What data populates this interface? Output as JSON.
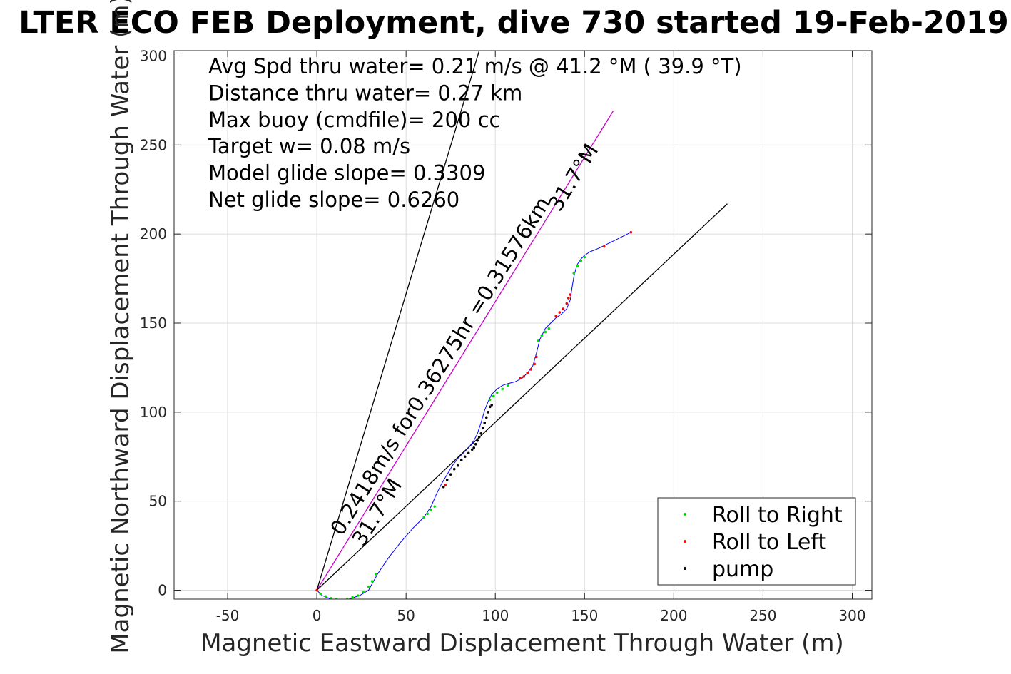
{
  "chart_data": {
    "type": "line",
    "title": "LTER ECO FEB Deployment, dive 730 started 19-Feb-2019",
    "xlabel": "Magnetic Eastward Displacement Through Water (m)",
    "ylabel": "Magnetic Northward Displacement Through Water (m)",
    "xlim": [
      -80,
      311
    ],
    "ylim": [
      -5,
      303
    ],
    "xticks": [
      -50,
      0,
      50,
      100,
      150,
      200,
      250,
      300
    ],
    "yticks": [
      0,
      50,
      100,
      150,
      200,
      250,
      300
    ],
    "xtick_labels": [
      "-50",
      "0",
      "50",
      "100",
      "150",
      "200",
      "250",
      "300"
    ],
    "ytick_labels": [
      "0",
      "50",
      "100",
      "150",
      "200",
      "250",
      "300"
    ],
    "grid": true,
    "info_lines": [
      "Avg Spd thru water=  0.21 m/s @  41.2 °M ( 39.9 °T)",
      "Distance thru water=  0.27 km",
      "Max buoy (cmdfile)= 200 cc",
      "Target w= 0.08 m/s",
      "Model glide slope= 0.3309",
      "Net glide slope= 0.6260"
    ],
    "annotations": [
      {
        "text": "0.2418m/s for0.36275hr =0.31576km",
        "x": 14,
        "y": 30,
        "angle_deg": -58
      },
      {
        "text": "31.7°M",
        "x": 26,
        "y": 24,
        "angle_deg": -58
      },
      {
        "text": "31.7°M",
        "x": 136,
        "y": 212,
        "angle_deg": -58
      }
    ],
    "reference_lines": [
      {
        "name": "",
        "x": [
          0,
          91
        ],
        "y": [
          0,
          303
        ],
        "color": "#000000"
      },
      {
        "name": "",
        "x": [
          0,
          166
        ],
        "y": [
          0,
          269
        ],
        "color": "#cc00cc"
      },
      {
        "name": "",
        "x": [
          0,
          230
        ],
        "y": [
          0,
          217
        ],
        "color": "#000000"
      }
    ],
    "track": {
      "color": "#0000ff",
      "x": [
        0,
        3,
        8,
        13,
        18,
        24,
        29,
        34,
        40,
        47,
        54,
        60,
        64,
        67,
        70,
        73,
        76,
        79,
        82,
        85,
        88,
        90,
        92,
        94,
        96,
        98,
        101,
        104,
        107,
        111,
        115,
        118,
        121,
        123,
        125,
        128,
        131,
        134,
        137,
        140,
        142,
        143,
        144,
        145,
        146,
        148,
        150,
        153,
        158,
        162,
        168,
        176
      ],
      "y": [
        0,
        -3,
        -5,
        -5.5,
        -5,
        -3,
        0,
        9,
        18,
        27,
        35,
        41,
        47,
        54,
        60,
        65,
        70,
        74,
        77,
        80,
        84,
        88,
        94,
        101,
        106,
        110,
        113,
        115,
        116,
        117,
        119,
        122,
        126,
        133,
        141,
        147,
        150,
        153,
        155,
        158,
        163,
        170,
        176,
        180,
        183,
        186,
        188,
        190,
        192,
        194,
        197,
        201
      ]
    },
    "series": [
      {
        "name": "Roll to Right",
        "color": "#00e000",
        "x": [
          2,
          5,
          8,
          11,
          14,
          17,
          20,
          23,
          26,
          29,
          31,
          33,
          60,
          62,
          64,
          66,
          97,
          99,
          101,
          104,
          107,
          124,
          126,
          128,
          130,
          144,
          146,
          148,
          150
        ],
        "y": [
          -2,
          -3.5,
          -4.5,
          -5,
          -5.5,
          -5,
          -4,
          -3,
          -1,
          2,
          5,
          9,
          41,
          43,
          45,
          47,
          107,
          109,
          111,
          113,
          115,
          140,
          143,
          145,
          147,
          178,
          182,
          185,
          187
        ]
      },
      {
        "name": "Roll to Left",
        "color": "#ff0000",
        "x": [
          0,
          72,
          114,
          116,
          118,
          120,
          122,
          123,
          134,
          136,
          138,
          140,
          141,
          142,
          161,
          176
        ],
        "y": [
          0,
          59,
          119,
          120,
          122,
          124,
          127,
          131,
          154,
          156,
          158,
          161,
          164,
          166,
          193,
          201
        ]
      },
      {
        "name": "pump",
        "color": "#000000",
        "x": [
          71,
          73,
          75,
          77,
          79,
          81,
          83,
          85,
          87,
          88,
          89,
          90,
          91,
          92,
          93,
          94,
          95,
          96,
          97,
          98
        ],
        "y": [
          58,
          62,
          65,
          68,
          70,
          73,
          75,
          77,
          79,
          80,
          82,
          84,
          86,
          88,
          91,
          94,
          97,
          100,
          103,
          104
        ]
      }
    ],
    "legend": {
      "placement": "bottom-right",
      "entries": [
        "Roll to Right",
        "Roll to Left",
        "pump"
      ]
    }
  }
}
